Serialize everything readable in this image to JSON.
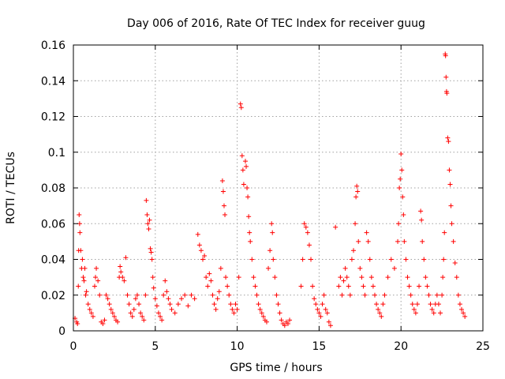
{
  "chart_data": {
    "type": "scatter",
    "title": "Day 006 of 2016, Rate Of TEC Index for receiver guug",
    "xlabel": "GPS time / hours",
    "ylabel": "ROTI / TECUs",
    "xlim": [
      0,
      25
    ],
    "ylim": [
      0,
      0.16
    ],
    "xticks": [
      0,
      5,
      10,
      15,
      20,
      25
    ],
    "yticks": [
      0,
      0.02,
      0.04,
      0.06,
      0.08,
      0.1,
      0.12,
      0.14,
      0.16
    ],
    "xtick_labels": [
      "0",
      "5",
      "10",
      "15",
      "20",
      "25"
    ],
    "ytick_labels": [
      "0",
      "0.02",
      "0.04",
      "0.06",
      "0.08",
      "0.1",
      "0.12",
      "0.14",
      "0.16"
    ],
    "grid": true,
    "marker": "+",
    "color": "#ff0000",
    "series": [
      {
        "name": "ROTI",
        "points": [
          [
            0.1,
            0.007
          ],
          [
            0.2,
            0.005
          ],
          [
            0.25,
            0.004
          ],
          [
            0.3,
            0.025
          ],
          [
            0.32,
            0.045
          ],
          [
            0.35,
            0.065
          ],
          [
            0.38,
            0.06
          ],
          [
            0.4,
            0.055
          ],
          [
            0.45,
            0.045
          ],
          [
            0.5,
            0.035
          ],
          [
            0.55,
            0.04
          ],
          [
            0.6,
            0.03
          ],
          [
            0.65,
            0.028
          ],
          [
            0.7,
            0.035
          ],
          [
            0.75,
            0.02
          ],
          [
            0.8,
            0.022
          ],
          [
            0.9,
            0.015
          ],
          [
            1.0,
            0.012
          ],
          [
            1.1,
            0.01
          ],
          [
            1.2,
            0.008
          ],
          [
            1.3,
            0.025
          ],
          [
            1.35,
            0.03
          ],
          [
            1.4,
            0.035
          ],
          [
            1.5,
            0.028
          ],
          [
            1.6,
            0.02
          ],
          [
            1.7,
            0.005
          ],
          [
            1.8,
            0.004
          ],
          [
            1.9,
            0.006
          ],
          [
            2.0,
            0.02
          ],
          [
            2.1,
            0.018
          ],
          [
            2.2,
            0.015
          ],
          [
            2.3,
            0.012
          ],
          [
            2.4,
            0.01
          ],
          [
            2.5,
            0.008
          ],
          [
            2.6,
            0.006
          ],
          [
            2.7,
            0.005
          ],
          [
            2.8,
            0.03
          ],
          [
            2.85,
            0.036
          ],
          [
            2.9,
            0.033
          ],
          [
            3.0,
            0.03
          ],
          [
            3.1,
            0.028
          ],
          [
            3.2,
            0.041
          ],
          [
            3.3,
            0.02
          ],
          [
            3.4,
            0.015
          ],
          [
            3.5,
            0.01
          ],
          [
            3.6,
            0.008
          ],
          [
            3.7,
            0.012
          ],
          [
            3.8,
            0.018
          ],
          [
            3.9,
            0.02
          ],
          [
            4.0,
            0.015
          ],
          [
            4.1,
            0.01
          ],
          [
            4.2,
            0.008
          ],
          [
            4.3,
            0.006
          ],
          [
            4.4,
            0.02
          ],
          [
            4.45,
            0.073
          ],
          [
            4.5,
            0.065
          ],
          [
            4.55,
            0.06
          ],
          [
            4.6,
            0.057
          ],
          [
            4.65,
            0.062
          ],
          [
            4.7,
            0.046
          ],
          [
            4.75,
            0.044
          ],
          [
            4.8,
            0.04
          ],
          [
            4.85,
            0.03
          ],
          [
            4.9,
            0.024
          ],
          [
            5.0,
            0.018
          ],
          [
            5.1,
            0.014
          ],
          [
            5.2,
            0.01
          ],
          [
            5.3,
            0.008
          ],
          [
            5.4,
            0.006
          ],
          [
            5.5,
            0.02
          ],
          [
            5.6,
            0.028
          ],
          [
            5.7,
            0.022
          ],
          [
            5.8,
            0.018
          ],
          [
            5.9,
            0.015
          ],
          [
            6.0,
            0.012
          ],
          [
            6.2,
            0.01
          ],
          [
            6.4,
            0.015
          ],
          [
            6.6,
            0.018
          ],
          [
            6.8,
            0.02
          ],
          [
            7.0,
            0.014
          ],
          [
            7.2,
            0.02
          ],
          [
            7.4,
            0.018
          ],
          [
            7.6,
            0.054
          ],
          [
            7.7,
            0.048
          ],
          [
            7.8,
            0.045
          ],
          [
            7.9,
            0.04
          ],
          [
            8.0,
            0.042
          ],
          [
            8.1,
            0.03
          ],
          [
            8.2,
            0.025
          ],
          [
            8.3,
            0.032
          ],
          [
            8.4,
            0.028
          ],
          [
            8.5,
            0.02
          ],
          [
            8.6,
            0.015
          ],
          [
            8.7,
            0.012
          ],
          [
            8.8,
            0.018
          ],
          [
            8.9,
            0.022
          ],
          [
            9.0,
            0.035
          ],
          [
            9.1,
            0.084
          ],
          [
            9.15,
            0.078
          ],
          [
            9.2,
            0.07
          ],
          [
            9.25,
            0.065
          ],
          [
            9.3,
            0.03
          ],
          [
            9.4,
            0.025
          ],
          [
            9.5,
            0.02
          ],
          [
            9.6,
            0.015
          ],
          [
            9.7,
            0.012
          ],
          [
            9.8,
            0.01
          ],
          [
            9.9,
            0.015
          ],
          [
            10.0,
            0.012
          ],
          [
            10.1,
            0.03
          ],
          [
            10.2,
            0.127
          ],
          [
            10.25,
            0.125
          ],
          [
            10.3,
            0.098
          ],
          [
            10.35,
            0.09
          ],
          [
            10.4,
            0.082
          ],
          [
            10.5,
            0.095
          ],
          [
            10.55,
            0.092
          ],
          [
            10.6,
            0.08
          ],
          [
            10.65,
            0.075
          ],
          [
            10.7,
            0.064
          ],
          [
            10.75,
            0.055
          ],
          [
            10.8,
            0.05
          ],
          [
            10.9,
            0.04
          ],
          [
            11.0,
            0.03
          ],
          [
            11.1,
            0.025
          ],
          [
            11.2,
            0.02
          ],
          [
            11.3,
            0.015
          ],
          [
            11.4,
            0.012
          ],
          [
            11.5,
            0.01
          ],
          [
            11.6,
            0.008
          ],
          [
            11.7,
            0.006
          ],
          [
            11.8,
            0.005
          ],
          [
            11.9,
            0.035
          ],
          [
            12.0,
            0.045
          ],
          [
            12.1,
            0.06
          ],
          [
            12.15,
            0.055
          ],
          [
            12.2,
            0.04
          ],
          [
            12.3,
            0.03
          ],
          [
            12.4,
            0.02
          ],
          [
            12.5,
            0.015
          ],
          [
            12.6,
            0.01
          ],
          [
            12.7,
            0.006
          ],
          [
            12.8,
            0.004
          ],
          [
            12.9,
            0.003
          ],
          [
            13.0,
            0.005
          ],
          [
            13.1,
            0.004
          ],
          [
            13.2,
            0.006
          ],
          [
            13.9,
            0.025
          ],
          [
            14.0,
            0.04
          ],
          [
            14.1,
            0.06
          ],
          [
            14.2,
            0.058
          ],
          [
            14.3,
            0.055
          ],
          [
            14.4,
            0.048
          ],
          [
            14.5,
            0.04
          ],
          [
            14.6,
            0.025
          ],
          [
            14.7,
            0.018
          ],
          [
            14.8,
            0.015
          ],
          [
            14.9,
            0.012
          ],
          [
            15.0,
            0.01
          ],
          [
            15.1,
            0.008
          ],
          [
            15.2,
            0.015
          ],
          [
            15.3,
            0.02
          ],
          [
            15.4,
            0.012
          ],
          [
            15.5,
            0.01
          ],
          [
            15.6,
            0.005
          ],
          [
            15.7,
            0.003
          ],
          [
            16.0,
            0.058
          ],
          [
            16.2,
            0.025
          ],
          [
            16.3,
            0.03
          ],
          [
            16.4,
            0.02
          ],
          [
            16.5,
            0.028
          ],
          [
            16.6,
            0.035
          ],
          [
            16.7,
            0.03
          ],
          [
            16.8,
            0.025
          ],
          [
            16.9,
            0.02
          ],
          [
            17.0,
            0.04
          ],
          [
            17.1,
            0.045
          ],
          [
            17.2,
            0.06
          ],
          [
            17.25,
            0.075
          ],
          [
            17.3,
            0.081
          ],
          [
            17.35,
            0.078
          ],
          [
            17.4,
            0.05
          ],
          [
            17.5,
            0.035
          ],
          [
            17.6,
            0.03
          ],
          [
            17.7,
            0.025
          ],
          [
            17.8,
            0.02
          ],
          [
            17.9,
            0.055
          ],
          [
            18.0,
            0.05
          ],
          [
            18.1,
            0.04
          ],
          [
            18.2,
            0.03
          ],
          [
            18.3,
            0.025
          ],
          [
            18.4,
            0.02
          ],
          [
            18.5,
            0.015
          ],
          [
            18.6,
            0.012
          ],
          [
            18.7,
            0.01
          ],
          [
            18.8,
            0.008
          ],
          [
            18.9,
            0.015
          ],
          [
            19.0,
            0.02
          ],
          [
            19.2,
            0.03
          ],
          [
            19.4,
            0.04
          ],
          [
            19.6,
            0.035
          ],
          [
            19.8,
            0.05
          ],
          [
            19.85,
            0.06
          ],
          [
            19.9,
            0.08
          ],
          [
            19.95,
            0.085
          ],
          [
            20.0,
            0.099
          ],
          [
            20.05,
            0.09
          ],
          [
            20.1,
            0.075
          ],
          [
            20.15,
            0.065
          ],
          [
            20.2,
            0.05
          ],
          [
            20.3,
            0.04
          ],
          [
            20.4,
            0.03
          ],
          [
            20.5,
            0.025
          ],
          [
            20.6,
            0.02
          ],
          [
            20.7,
            0.015
          ],
          [
            20.8,
            0.012
          ],
          [
            20.9,
            0.01
          ],
          [
            21.0,
            0.015
          ],
          [
            21.1,
            0.025
          ],
          [
            21.2,
            0.067
          ],
          [
            21.25,
            0.062
          ],
          [
            21.3,
            0.05
          ],
          [
            21.4,
            0.04
          ],
          [
            21.5,
            0.03
          ],
          [
            21.6,
            0.025
          ],
          [
            21.7,
            0.02
          ],
          [
            21.8,
            0.015
          ],
          [
            21.9,
            0.012
          ],
          [
            22.0,
            0.01
          ],
          [
            22.1,
            0.015
          ],
          [
            22.2,
            0.02
          ],
          [
            22.3,
            0.015
          ],
          [
            22.4,
            0.01
          ],
          [
            22.5,
            0.02
          ],
          [
            22.55,
            0.03
          ],
          [
            22.6,
            0.04
          ],
          [
            22.65,
            0.055
          ],
          [
            22.7,
            0.155
          ],
          [
            22.72,
            0.154
          ],
          [
            22.75,
            0.142
          ],
          [
            22.78,
            0.134
          ],
          [
            22.8,
            0.133
          ],
          [
            22.85,
            0.108
          ],
          [
            22.9,
            0.106
          ],
          [
            22.95,
            0.09
          ],
          [
            23.0,
            0.082
          ],
          [
            23.05,
            0.07
          ],
          [
            23.1,
            0.06
          ],
          [
            23.2,
            0.05
          ],
          [
            23.3,
            0.038
          ],
          [
            23.4,
            0.03
          ],
          [
            23.5,
            0.02
          ],
          [
            23.6,
            0.015
          ],
          [
            23.7,
            0.012
          ],
          [
            23.8,
            0.01
          ],
          [
            23.9,
            0.008
          ]
        ]
      }
    ]
  }
}
